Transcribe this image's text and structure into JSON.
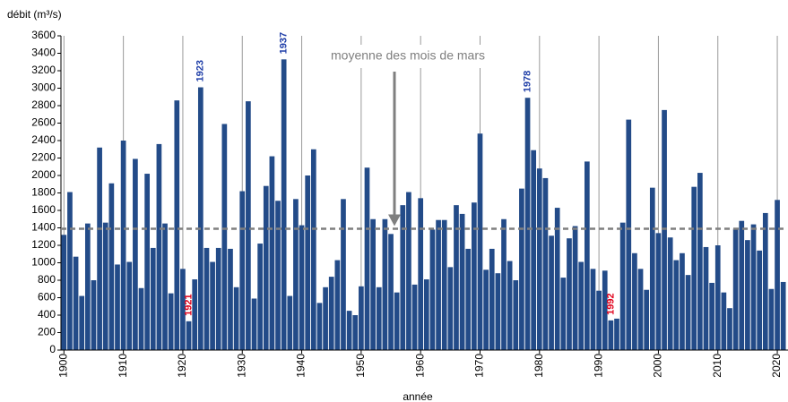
{
  "chart_data": {
    "type": "bar",
    "ylabel": "débit (m³/s)",
    "xlabel": "année",
    "color": "#234b88",
    "x": [
      1900,
      1901,
      1902,
      1903,
      1904,
      1905,
      1906,
      1907,
      1908,
      1909,
      1910,
      1911,
      1912,
      1913,
      1914,
      1915,
      1916,
      1917,
      1918,
      1919,
      1920,
      1921,
      1922,
      1923,
      1924,
      1925,
      1926,
      1927,
      1928,
      1929,
      1930,
      1931,
      1932,
      1933,
      1934,
      1935,
      1936,
      1937,
      1938,
      1939,
      1940,
      1941,
      1942,
      1943,
      1944,
      1945,
      1946,
      1947,
      1948,
      1949,
      1950,
      1951,
      1952,
      1953,
      1954,
      1955,
      1956,
      1957,
      1958,
      1959,
      1960,
      1961,
      1962,
      1963,
      1964,
      1965,
      1966,
      1967,
      1968,
      1969,
      1970,
      1971,
      1972,
      1973,
      1974,
      1975,
      1976,
      1977,
      1978,
      1979,
      1980,
      1981,
      1982,
      1983,
      1984,
      1985,
      1986,
      1987,
      1988,
      1989,
      1990,
      1991,
      1992,
      1993,
      1994,
      1995,
      1996,
      1997,
      1998,
      1999,
      2000,
      2001,
      2002,
      2003,
      2004,
      2005,
      2006,
      2007,
      2008,
      2009,
      2010,
      2011,
      2012,
      2013,
      2014,
      2015,
      2016,
      2017,
      2018,
      2019,
      2020,
      2021
    ],
    "values": [
      1320,
      1810,
      1070,
      620,
      1450,
      800,
      2320,
      1460,
      1910,
      980,
      2400,
      1010,
      2190,
      710,
      2020,
      1170,
      2360,
      1450,
      650,
      2860,
      930,
      330,
      810,
      3010,
      1170,
      1010,
      1170,
      2590,
      1160,
      720,
      1820,
      2850,
      590,
      1220,
      1880,
      2220,
      1710,
      3330,
      620,
      1730,
      1430,
      2000,
      2300,
      540,
      720,
      840,
      1030,
      1730,
      450,
      400,
      730,
      2090,
      1500,
      720,
      1500,
      1330,
      660,
      1660,
      1810,
      750,
      1740,
      810,
      1380,
      1490,
      1490,
      950,
      1660,
      1560,
      1160,
      1690,
      2480,
      920,
      1160,
      880,
      1500,
      1020,
      800,
      1850,
      2890,
      2290,
      2080,
      1970,
      1310,
      1630,
      830,
      1280,
      1420,
      1010,
      2160,
      930,
      680,
      910,
      340,
      360,
      1460,
      2640,
      1110,
      930,
      690,
      1860,
      1340,
      2750,
      1290,
      1030,
      1110,
      860,
      1870,
      2030,
      1180,
      770,
      1200,
      660,
      480,
      1390,
      1480,
      1260,
      1440,
      1140,
      1570,
      700,
      1720,
      780
    ],
    "xlim": [
      1899.5,
      2021.5
    ],
    "xticks": [
      1900,
      1910,
      1920,
      1930,
      1940,
      1950,
      1960,
      1970,
      1980,
      1990,
      2000,
      2010,
      2020
    ],
    "ylim": [
      0,
      3600
    ],
    "yticks": [
      0,
      200,
      400,
      600,
      800,
      1000,
      1200,
      1400,
      1600,
      1800,
      2000,
      2200,
      2400,
      2600,
      2800,
      3000,
      3200,
      3400,
      3600
    ],
    "grid": "x",
    "mean": 1390,
    "mean_label": "moyenne des mois de mars",
    "mean_color": "#7f7f7f",
    "annotations": [
      {
        "text": "1921",
        "x": 1921,
        "color": "#e0001a"
      },
      {
        "text": "1923",
        "x": 1923,
        "color": "#1f3ea8"
      },
      {
        "text": "1937",
        "x": 1937,
        "color": "#1f3ea8"
      },
      {
        "text": "1978",
        "x": 1978,
        "color": "#1f3ea8"
      },
      {
        "text": "1992",
        "x": 1992,
        "color": "#e0001a"
      }
    ]
  }
}
